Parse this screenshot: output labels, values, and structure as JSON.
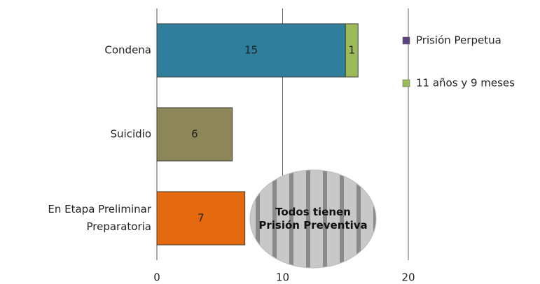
{
  "chart_data": {
    "type": "stacked-barh",
    "categories": [
      "Condena",
      "Suicidio",
      "En Etapa Preliminar Preparatoria"
    ],
    "series": [
      {
        "colors": [
          "#2f7f9c",
          "#8d8658",
          "#e4690f"
        ],
        "values": [
          15,
          6,
          7
        ]
      },
      {
        "name": "11 años y 9 meses",
        "color": "#9bbb59",
        "values": [
          1,
          null,
          null
        ]
      },
      {
        "name": "Prisión Perpetua",
        "color": "#5e4383",
        "values": [
          0,
          null,
          null
        ]
      }
    ],
    "legend_order": [
      2,
      1
    ],
    "xlim": [
      0,
      20
    ],
    "xticks": [
      0,
      10,
      20
    ],
    "grid": true,
    "annotation": "Todos tienen Prisión Preventiva"
  }
}
